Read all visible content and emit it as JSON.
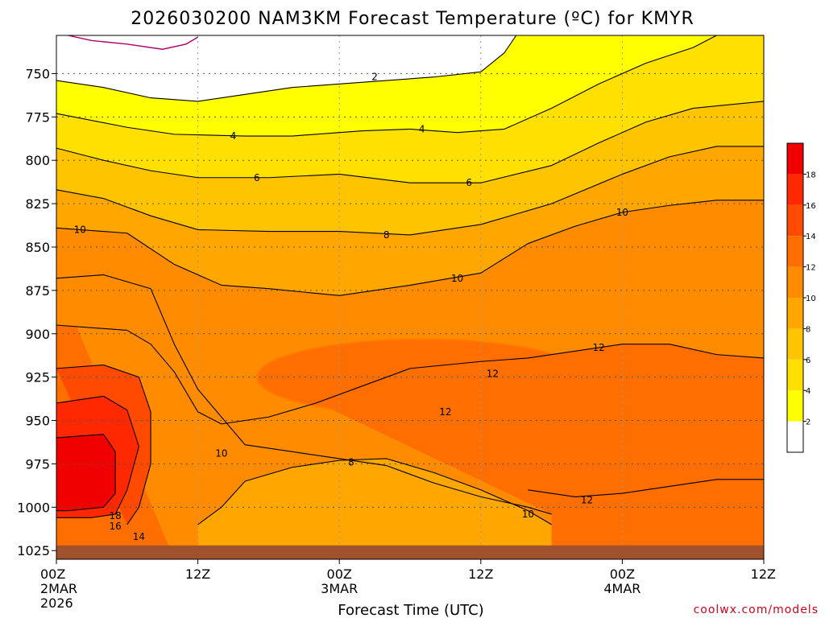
{
  "chart_data": {
    "type": "heatmap",
    "title": "2026030200 NAM3KM Forecast Temperature (ºC) for KMYR",
    "xlabel": "Forecast Time (UTC)",
    "ylabel": "",
    "y_levels": [
      750,
      775,
      800,
      825,
      850,
      875,
      900,
      925,
      950,
      975,
      1000,
      1025
    ],
    "y_range": [
      728,
      1030
    ],
    "x_ticks": [
      {
        "hours": 0,
        "label": "00Z",
        "sub": "2MAR",
        "sub2": "2026"
      },
      {
        "hours": 12,
        "label": "12Z",
        "sub": "",
        "sub2": ""
      },
      {
        "hours": 24,
        "label": "00Z",
        "sub": "3MAR",
        "sub2": ""
      },
      {
        "hours": 36,
        "label": "12Z",
        "sub": "",
        "sub2": ""
      },
      {
        "hours": 48,
        "label": "00Z",
        "sub": "4MAR",
        "sub2": ""
      },
      {
        "hours": 60,
        "label": "12Z",
        "sub": "",
        "sub2": ""
      }
    ],
    "x_range": [
      0,
      60
    ],
    "colorbar": {
      "levels": [
        2,
        4,
        6,
        8,
        10,
        12,
        14,
        16,
        18
      ],
      "labels": [
        "2",
        "4",
        "6",
        "8",
        "10",
        "12",
        "14",
        "16",
        "18"
      ],
      "colors": [
        "#ffffff",
        "#ffff00",
        "#ffe000",
        "#ffc400",
        "#ffa600",
        "#ff8c00",
        "#ff6e00",
        "#ff4a00",
        "#ff2800",
        "#f00000"
      ]
    },
    "isotherms": [
      {
        "value": 2,
        "label": "2",
        "points": [
          [
            0,
            754
          ],
          [
            4,
            758
          ],
          [
            8,
            764
          ],
          [
            12,
            766
          ],
          [
            16,
            762
          ],
          [
            20,
            758
          ],
          [
            26,
            755
          ],
          [
            32,
            752
          ],
          [
            36,
            749
          ],
          [
            38,
            738
          ],
          [
            39,
            728
          ]
        ]
      },
      {
        "value": 4,
        "label": "4",
        "points": [
          [
            0,
            773
          ],
          [
            6,
            781
          ],
          [
            10,
            785
          ],
          [
            16,
            786
          ],
          [
            20,
            786
          ],
          [
            26,
            783
          ],
          [
            30,
            782
          ],
          [
            34,
            784
          ],
          [
            38,
            782
          ],
          [
            42,
            770
          ],
          [
            46,
            756
          ],
          [
            50,
            744
          ],
          [
            54,
            735
          ],
          [
            56,
            728
          ]
        ]
      },
      {
        "value": 6,
        "label": "6",
        "points": [
          [
            0,
            793
          ],
          [
            4,
            800
          ],
          [
            8,
            806
          ],
          [
            12,
            810
          ],
          [
            18,
            810
          ],
          [
            24,
            808
          ],
          [
            30,
            813
          ],
          [
            36,
            813
          ],
          [
            42,
            803
          ],
          [
            46,
            790
          ],
          [
            50,
            778
          ],
          [
            54,
            770
          ],
          [
            60,
            766
          ]
        ]
      },
      {
        "value": 8,
        "label": "8",
        "points": [
          [
            0,
            817
          ],
          [
            4,
            822
          ],
          [
            8,
            832
          ],
          [
            12,
            840
          ],
          [
            18,
            841
          ],
          [
            24,
            841
          ],
          [
            30,
            843
          ],
          [
            36,
            837
          ],
          [
            42,
            825
          ],
          [
            48,
            808
          ],
          [
            52,
            798
          ],
          [
            56,
            792
          ],
          [
            60,
            792
          ]
        ]
      },
      {
        "value": 10,
        "label": "10",
        "points": [
          [
            0,
            839
          ],
          [
            6,
            842
          ],
          [
            10,
            860
          ],
          [
            14,
            872
          ],
          [
            18,
            874
          ],
          [
            24,
            878
          ],
          [
            30,
            872
          ],
          [
            36,
            865
          ],
          [
            40,
            848
          ],
          [
            44,
            838
          ],
          [
            48,
            830
          ],
          [
            52,
            826
          ],
          [
            56,
            823
          ],
          [
            60,
            823
          ]
        ]
      },
      {
        "value": 10,
        "label": "10",
        "points": [
          [
            0,
            868
          ],
          [
            4,
            866
          ],
          [
            8,
            874
          ],
          [
            10,
            906
          ],
          [
            12,
            932
          ],
          [
            16,
            964
          ],
          [
            20,
            968
          ],
          [
            24,
            972
          ],
          [
            28,
            976
          ],
          [
            32,
            986
          ],
          [
            36,
            994
          ],
          [
            40,
            1000
          ],
          [
            42,
            1004
          ]
        ]
      },
      {
        "value": 8,
        "label": "8",
        "points": [
          [
            12,
            1010
          ],
          [
            14,
            1000
          ],
          [
            16,
            985
          ],
          [
            20,
            977
          ],
          [
            24,
            973
          ],
          [
            28,
            972
          ],
          [
            32,
            980
          ],
          [
            36,
            990
          ],
          [
            40,
            1002
          ],
          [
            42,
            1010
          ]
        ]
      },
      {
        "value": 12,
        "label": "12",
        "points": [
          [
            0,
            895
          ],
          [
            6,
            898
          ],
          [
            8,
            906
          ],
          [
            10,
            922
          ],
          [
            12,
            945
          ],
          [
            14,
            952
          ],
          [
            18,
            948
          ],
          [
            22,
            940
          ],
          [
            26,
            930
          ],
          [
            30,
            920
          ],
          [
            36,
            916
          ],
          [
            40,
            914
          ],
          [
            44,
            910
          ],
          [
            48,
            906
          ],
          [
            52,
            906
          ],
          [
            56,
            912
          ],
          [
            60,
            914
          ]
        ]
      },
      {
        "value": 12,
        "label": "12",
        "points": [
          [
            40,
            990
          ],
          [
            44,
            994
          ],
          [
            48,
            992
          ],
          [
            52,
            988
          ],
          [
            56,
            984
          ],
          [
            60,
            984
          ]
        ]
      },
      {
        "value": 14,
        "label": "14",
        "points": [
          [
            0,
            920
          ],
          [
            4,
            918
          ],
          [
            7,
            925
          ],
          [
            8,
            945
          ],
          [
            8,
            975
          ],
          [
            7,
            1000
          ],
          [
            6,
            1010
          ]
        ]
      },
      {
        "value": 16,
        "label": "16",
        "points": [
          [
            0,
            940
          ],
          [
            4,
            936
          ],
          [
            6,
            944
          ],
          [
            7,
            965
          ],
          [
            6,
            990
          ],
          [
            5,
            1004
          ],
          [
            3,
            1006
          ],
          [
            0,
            1006
          ]
        ]
      },
      {
        "value": 18,
        "label": "18",
        "points": [
          [
            0,
            960
          ],
          [
            4,
            958
          ],
          [
            5,
            968
          ],
          [
            5,
            992
          ],
          [
            4,
            1000
          ],
          [
            1,
            1002
          ],
          [
            0,
            1002
          ]
        ]
      }
    ],
    "label_marks": [
      {
        "text": "2",
        "hours": 27,
        "level": 752
      },
      {
        "text": "4",
        "hours": 15,
        "level": 786
      },
      {
        "text": "4",
        "hours": 31,
        "level": 782
      },
      {
        "text": "6",
        "hours": 17,
        "level": 810
      },
      {
        "text": "6",
        "hours": 35,
        "level": 813
      },
      {
        "text": "8",
        "hours": 28,
        "level": 843
      },
      {
        "text": "10",
        "hours": 2,
        "level": 840
      },
      {
        "text": "10",
        "hours": 34,
        "level": 868
      },
      {
        "text": "10",
        "hours": 48,
        "level": 830
      },
      {
        "text": "12",
        "hours": 46,
        "level": 908
      },
      {
        "text": "12",
        "hours": 37,
        "level": 923
      },
      {
        "text": "12",
        "hours": 33,
        "level": 945
      },
      {
        "text": "12",
        "hours": 45,
        "level": 996
      },
      {
        "text": "10",
        "hours": 14,
        "level": 969
      },
      {
        "text": "8",
        "hours": 25,
        "level": 974
      },
      {
        "text": "10",
        "hours": 40,
        "level": 1004
      },
      {
        "text": "18",
        "hours": 5,
        "level": 1005
      },
      {
        "text": "16",
        "hours": 5,
        "level": 1011
      },
      {
        "text": "14",
        "hours": 7,
        "level": 1017
      }
    ],
    "ground_level": 1022,
    "credit": "coolwx.com/models"
  }
}
